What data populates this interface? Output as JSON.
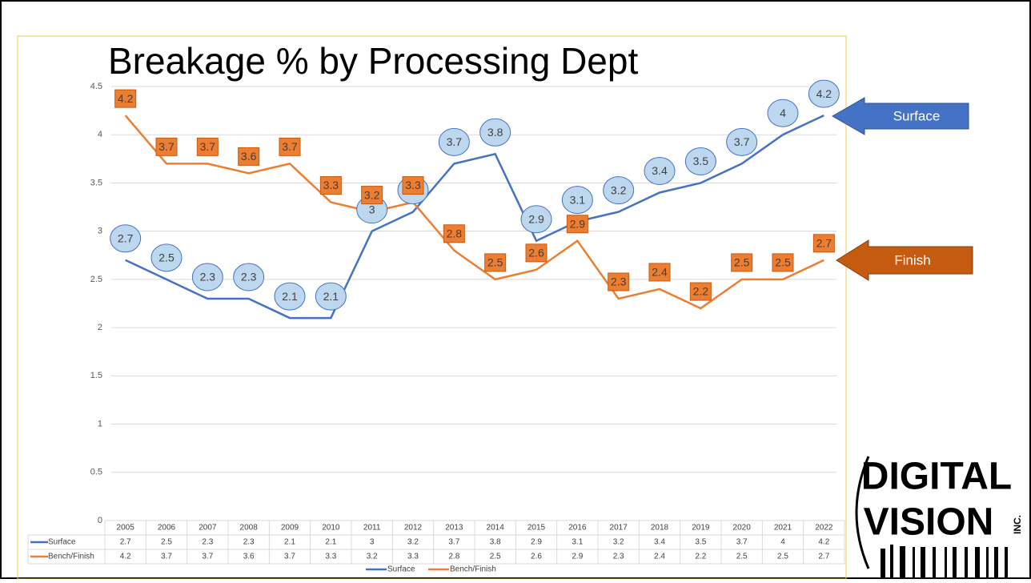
{
  "chart_data": {
    "type": "line",
    "title": "Breakage % by Processing Dept",
    "categories": [
      "2005",
      "2006",
      "2007",
      "2008",
      "2009",
      "2010",
      "2011",
      "2012",
      "2013",
      "2014",
      "2015",
      "2016",
      "2017",
      "2018",
      "2019",
      "2020",
      "2021",
      "2022"
    ],
    "series": [
      {
        "name": "Surface",
        "color": "#4472c4",
        "values": [
          2.7,
          2.5,
          2.3,
          2.3,
          2.1,
          2.1,
          3,
          3.2,
          3.7,
          3.8,
          2.9,
          3.1,
          3.2,
          3.4,
          3.5,
          3.7,
          4,
          4.2
        ]
      },
      {
        "name": "Bench/Finish",
        "color": "#ed7d31",
        "values": [
          4.2,
          3.7,
          3.7,
          3.6,
          3.7,
          3.3,
          3.2,
          3.3,
          2.8,
          2.5,
          2.6,
          2.9,
          2.3,
          2.4,
          2.2,
          2.5,
          2.5,
          2.7
        ]
      }
    ],
    "ylim": [
      0,
      4.5
    ],
    "yticks": [
      0,
      0.5,
      1,
      1.5,
      2,
      2.5,
      3,
      3.5,
      4,
      4.5
    ],
    "grid": true,
    "legend": "bottom",
    "annotations": [
      "Surface",
      "Finish"
    ],
    "logo": [
      "DIGITAL",
      "VISION",
      "INC."
    ]
  }
}
